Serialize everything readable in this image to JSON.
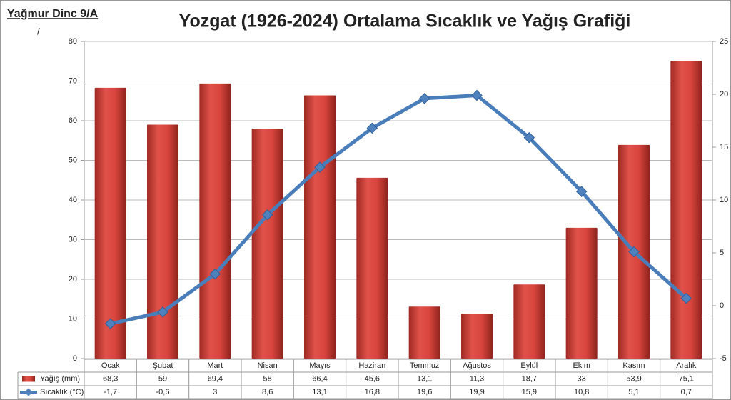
{
  "chart_data": {
    "type": "bar-line",
    "author": "Yağmur Dinc 9/A",
    "note": "/",
    "title": "Yozgat (1926-2024) Ortalama Sıcaklık ve Yağış Grafiği",
    "categories": [
      "Ocak",
      "Şubat",
      "Mart",
      "Nisan",
      "Mayıs",
      "Haziran",
      "Temmuz",
      "Ağustos",
      "Eylül",
      "Ekim",
      "Kasım",
      "Aralık"
    ],
    "series": [
      {
        "name": "Yağış (mm)",
        "type": "bar",
        "color": "#c0392b",
        "values": [
          68.3,
          59,
          69.4,
          58,
          66.4,
          45.6,
          13.1,
          11.3,
          18.7,
          33,
          53.9,
          75.1
        ],
        "value_labels": [
          "68,3",
          "59",
          "69,4",
          "58",
          "66,4",
          "45,6",
          "13,1",
          "11,3",
          "18,7",
          "33",
          "53,9",
          "75,1"
        ]
      },
      {
        "name": "Sıcaklık (°C)",
        "type": "line",
        "axis": "y2",
        "color": "#4a7ebb",
        "values": [
          -1.7,
          -0.6,
          3,
          8.6,
          13.1,
          16.8,
          19.6,
          19.9,
          15.9,
          10.8,
          5.1,
          0.7
        ],
        "value_labels": [
          "-1,7",
          "-0,6",
          "3",
          "8,6",
          "13,1",
          "16,8",
          "19,6",
          "19,9",
          "15,9",
          "10,8",
          "5,1",
          "0,7"
        ]
      }
    ],
    "ylim": [
      0,
      80
    ],
    "yticks": [
      0,
      10,
      20,
      30,
      40,
      50,
      60,
      70,
      80
    ],
    "y2lim": [
      -5,
      25
    ],
    "y2ticks": [
      -5,
      0,
      5,
      10,
      15,
      20,
      25
    ],
    "grid": true
  }
}
